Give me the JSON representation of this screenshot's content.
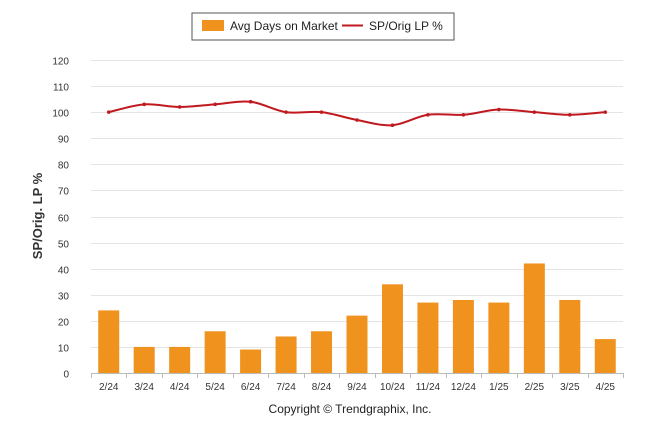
{
  "chart_data": {
    "type": "bar",
    "categories": [
      "2/24",
      "3/24",
      "4/24",
      "5/24",
      "6/24",
      "7/24",
      "8/24",
      "9/24",
      "10/24",
      "11/24",
      "12/24",
      "1/25",
      "2/25",
      "3/25",
      "4/25"
    ],
    "series": [
      {
        "name": "Avg Days on Market",
        "type": "bar",
        "color": "#F0921E",
        "values": [
          24,
          10,
          10,
          16,
          9,
          14,
          16,
          22,
          34,
          27,
          28,
          27,
          42,
          28,
          13
        ]
      },
      {
        "name": "SP/Orig LP %",
        "type": "line",
        "color": "#C0191F",
        "values": [
          100,
          103,
          102,
          103,
          104,
          100,
          100,
          97,
          95,
          99,
          99,
          101,
          100,
          99,
          100
        ]
      }
    ],
    "ylabel": "SP/Orig. LP %",
    "xlabel": "",
    "ylim": [
      0,
      120
    ],
    "yticks": [
      0,
      10,
      20,
      30,
      40,
      50,
      60,
      70,
      80,
      90,
      100,
      110,
      120
    ],
    "grid": true,
    "legend_position": "top-center",
    "footer": "Copyright © Trendgraphix, Inc."
  }
}
